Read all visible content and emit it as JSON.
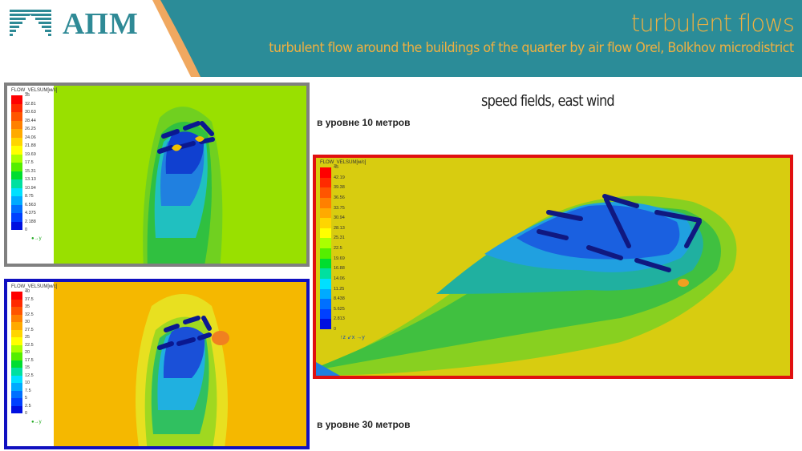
{
  "header": {
    "logo_text": "АПМ",
    "title": "turbulent flows",
    "subtitle": "turbulent flow  around the buildings  of the quarter  by air flow  Orel, Bolkhov microdistrict"
  },
  "heading": "speed fields, east wind",
  "level_10_label": "в уровне 10 метров",
  "level_30_label": "в уровне 30 метров",
  "panels": [
    {
      "id": "level10",
      "border": "#808080",
      "background": "#99e000",
      "legend_title": "FLOW_VELSUM[м/с]",
      "legend_values": [
        "35",
        "32.81",
        "30.63",
        "28.44",
        "26.25",
        "24.06",
        "21.88",
        "19.69",
        "17.5",
        "15.31",
        "13.13",
        "10.94",
        "8.75",
        "6.563",
        "4.375",
        "2.188",
        "0"
      ]
    },
    {
      "id": "level30",
      "border": "#1010c0",
      "background": "#f5b800",
      "legend_title": "FLOW_VELSUM[м/с]",
      "legend_values": [
        "40",
        "37.5",
        "35",
        "32.5",
        "30",
        "27.5",
        "25",
        "22.5",
        "20",
        "17.5",
        "15",
        "12.5",
        "10",
        "7.5",
        "5",
        "2.5",
        "0"
      ]
    },
    {
      "id": "perspective",
      "border": "#e01010",
      "background": "#d8cc10",
      "legend_title": "FLOW_VELSUM[м/с]",
      "legend_values": [
        "45",
        "42.19",
        "39.38",
        "36.56",
        "33.75",
        "30.94",
        "28.13",
        "25.31",
        "22.5",
        "19.69",
        "16.88",
        "14.06",
        "11.25",
        "8.438",
        "5.625",
        "2.813",
        "0"
      ]
    }
  ],
  "axes": {
    "x": "x",
    "y": "y",
    "z": "z"
  },
  "colors": {
    "teal": "#2b8c98",
    "orange": "#f0a860",
    "title": "#f0b040"
  }
}
